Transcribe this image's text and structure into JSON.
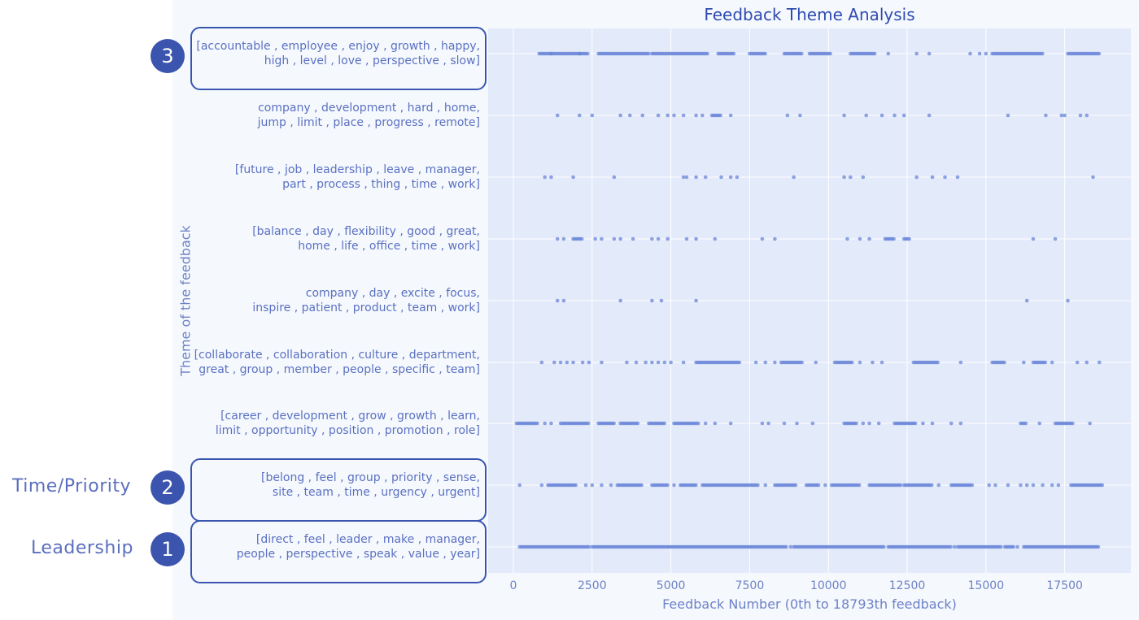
{
  "chart_data": {
    "type": "scatter",
    "title": "Feedback Theme Analysis",
    "xlabel": "Feedback Number (0th to 18793th feedback)",
    "ylabel": "Theme of the feedback",
    "xlim": [
      -800,
      19600
    ],
    "xticks": [
      0,
      2500,
      5000,
      7500,
      10000,
      12500,
      15000,
      17500
    ],
    "grid": true,
    "point_color": "#6a85d8",
    "categories": [
      {
        "line1": "[accountable , employee , enjoy , growth , happy,",
        "line2": "high , level , love , perspective , slow]"
      },
      {
        "line1": "company , development , hard , home,",
        "line2": "jump , limit , place , progress , remote]"
      },
      {
        "line1": "[future , job , leadership , leave , manager,",
        "line2": "part , process , thing , time , work]"
      },
      {
        "line1": "[balance , day , flexibility , good , great,",
        "line2": "home , life , office , time , work]"
      },
      {
        "line1": "company , day , excite , focus,",
        "line2": "inspire , patient , product , team , work]"
      },
      {
        "line1": "[collaborate , collaboration , culture , department,",
        "line2": "great , group , member , people , specific , team]"
      },
      {
        "line1": "[career , development , grow , growth , learn,",
        "line2": "limit , opportunity , position , promotion , role]"
      },
      {
        "line1": "[belong , feel , group , priority , sense,",
        "line2": "site , team , time , urgency , urgent]"
      },
      {
        "line1": "[direct , feel , leader , make , manager,",
        "line2": "people , perspective , speak , value , year]"
      }
    ],
    "series": [
      {
        "row": 0,
        "ranges": [
          [
            820,
            2400
          ],
          [
            2700,
            4300
          ],
          [
            4400,
            6200
          ],
          [
            6500,
            7000
          ],
          [
            7500,
            8000
          ],
          [
            8600,
            9200
          ],
          [
            9400,
            10100
          ],
          [
            10700,
            11500
          ],
          [
            15200,
            16800
          ],
          [
            17600,
            18600
          ]
        ],
        "points": [
          1200,
          2100,
          11900,
          12800,
          13200,
          14500,
          14800,
          15000
        ]
      },
      {
        "row": 1,
        "ranges": [
          [
            6300,
            6600
          ]
        ],
        "points": [
          1400,
          2100,
          2500,
          3400,
          3700,
          4100,
          4600,
          4900,
          5100,
          5400,
          5800,
          6000,
          6900,
          8700,
          9100,
          10500,
          11200,
          11700,
          12100,
          12400,
          13200,
          15700,
          16900,
          17400,
          17500,
          18000,
          18200
        ]
      },
      {
        "row": 2,
        "ranges": [],
        "points": [
          1000,
          1200,
          1900,
          3200,
          5400,
          5500,
          5800,
          6100,
          6600,
          6900,
          7100,
          8900,
          10500,
          10700,
          11100,
          12800,
          13300,
          13700,
          14100,
          18400
        ]
      },
      {
        "row": 3,
        "ranges": [
          [
            1900,
            2200
          ],
          [
            11800,
            12100
          ],
          [
            12400,
            12600
          ]
        ],
        "points": [
          1400,
          1600,
          2600,
          2800,
          3200,
          3400,
          3800,
          4400,
          4600,
          4900,
          5500,
          5800,
          6400,
          7900,
          8300,
          10600,
          11000,
          11300,
          16500,
          17200
        ]
      },
      {
        "row": 4,
        "ranges": [],
        "points": [
          1400,
          1600,
          3400,
          4400,
          4700,
          5800,
          16300,
          17600
        ]
      },
      {
        "row": 5,
        "ranges": [
          [
            5800,
            7200
          ],
          [
            8500,
            9200
          ],
          [
            10200,
            10800
          ],
          [
            12700,
            13500
          ],
          [
            15200,
            15600
          ],
          [
            16500,
            16900
          ]
        ],
        "points": [
          900,
          1300,
          1500,
          1700,
          1900,
          2200,
          2400,
          2800,
          3600,
          3900,
          4200,
          4400,
          4600,
          4800,
          5000,
          5400,
          7700,
          8000,
          8300,
          9600,
          11000,
          11400,
          11700,
          14200,
          16200,
          17100,
          17900,
          18200,
          18600
        ]
      },
      {
        "row": 6,
        "ranges": [
          [
            100,
            800
          ],
          [
            1500,
            2400
          ],
          [
            2700,
            3200
          ],
          [
            3400,
            4000
          ],
          [
            4300,
            4800
          ],
          [
            5100,
            5900
          ],
          [
            10500,
            10900
          ],
          [
            12100,
            12800
          ],
          [
            16100,
            16300
          ],
          [
            17200,
            17800
          ]
        ],
        "points": [
          1000,
          1200,
          6100,
          6400,
          6900,
          7900,
          8100,
          8600,
          9000,
          9500,
          11100,
          11300,
          11600,
          13000,
          13300,
          13900,
          14200,
          16700,
          18300
        ]
      },
      {
        "row": 7,
        "ranges": [
          [
            1100,
            2000
          ],
          [
            3300,
            4100
          ],
          [
            4400,
            4900
          ],
          [
            5300,
            5800
          ],
          [
            6000,
            7800
          ],
          [
            8300,
            9000
          ],
          [
            9300,
            9700
          ],
          [
            10100,
            11000
          ],
          [
            11300,
            12300
          ],
          [
            12400,
            13300
          ],
          [
            13900,
            14600
          ],
          [
            17700,
            18700
          ]
        ],
        "points": [
          200,
          900,
          2300,
          2500,
          2800,
          3100,
          5100,
          8000,
          9900,
          13500,
          15100,
          15300,
          15700,
          16100,
          16300,
          16500,
          16800,
          17100,
          17300
        ]
      },
      {
        "row": 8,
        "ranges": [
          [
            200,
            2400
          ],
          [
            2500,
            8700
          ],
          [
            8900,
            11800
          ],
          [
            11900,
            13900
          ],
          [
            14100,
            15500
          ],
          [
            15600,
            15900
          ],
          [
            16200,
            18600
          ]
        ],
        "points": [
          8800,
          14000,
          16000
        ]
      }
    ]
  },
  "annotations": [
    {
      "number": "3",
      "row": 0,
      "label": ""
    },
    {
      "number": "2",
      "row": 7,
      "label": "Time/Priority"
    },
    {
      "number": "1",
      "row": 8,
      "label": "Leadership"
    }
  ]
}
